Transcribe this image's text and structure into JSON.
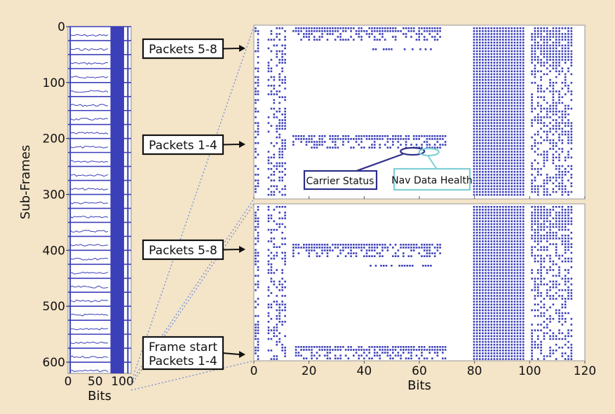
{
  "chart_data": [
    {
      "type": "scatter",
      "name": "overview",
      "ylabel": "Sub-Frames",
      "xlabel": "Bits",
      "xlim": [
        0,
        116
      ],
      "ylim": [
        0,
        620
      ],
      "y_inverted": true,
      "xticks": [
        "0",
        "50",
        "100"
      ],
      "yticks": [
        "0",
        "100",
        "200",
        "300",
        "400",
        "500",
        "600"
      ],
      "legend": "none",
      "grid": false,
      "marker_color": "#3b3fb8"
    },
    {
      "type": "scatter",
      "name": "zoom",
      "xlabel": "Bits",
      "xlim": [
        0,
        120
      ],
      "xticks": [
        "0",
        "20",
        "40",
        "60",
        "80",
        "100",
        "120"
      ],
      "panels": 2,
      "legend": "none",
      "grid": false,
      "marker_color": "#3b3fb8",
      "annotations": [
        {
          "text": "Packets 5-8",
          "panel": "top",
          "target": "packets 5-8 block"
        },
        {
          "text": "Packets 1-4",
          "panel": "top",
          "target": "packets 1-4 block"
        },
        {
          "text": "Carrier Status",
          "panel": "top",
          "target": "bits ~55-60"
        },
        {
          "text": "Nav Data Health",
          "panel": "top",
          "target": "bits ~61-66"
        },
        {
          "text": "Packets 5-8",
          "panel": "bottom",
          "target": "packets 5-8 block"
        },
        {
          "text": "Frame start",
          "panel": "bottom",
          "target": "frame start row"
        },
        {
          "text": "Packets 1-4",
          "panel": "bottom",
          "target": "packets 1-4 block"
        }
      ]
    }
  ]
}
